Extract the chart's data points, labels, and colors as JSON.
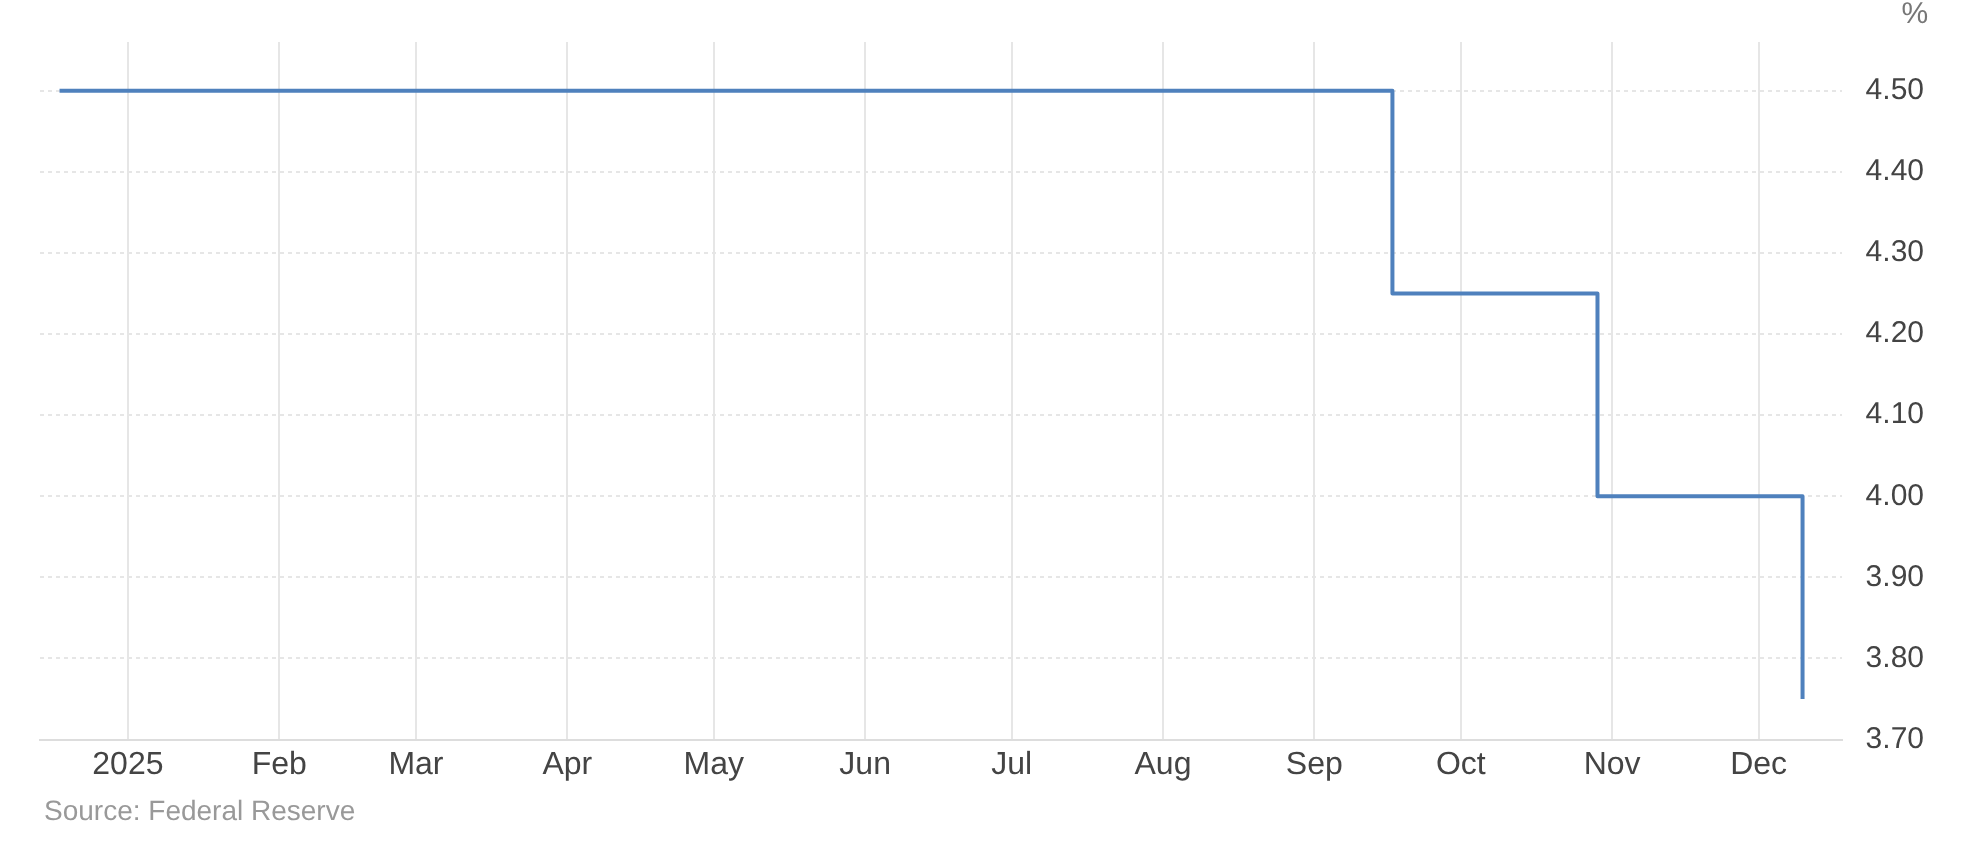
{
  "chart_data": {
    "type": "step",
    "ylabel": "%",
    "annotations": [
      "Source: Federal Reserve"
    ],
    "x": [
      "2024-12-18",
      "2025-09-17",
      "2025-10-29",
      "2025-12-10"
    ],
    "series": [
      {
        "color": "#4f81bd",
        "values": [
          4.5,
          4.25,
          4.0,
          3.75
        ]
      }
    ],
    "xlim": [
      "2024-12-14",
      "2025-12-18"
    ],
    "xticks": [
      {
        "value": "2025-01-01",
        "label": "2025"
      },
      {
        "value": "2025-02-01",
        "label": "Feb"
      },
      {
        "value": "2025-03-01",
        "label": "Mar"
      },
      {
        "value": "2025-04-01",
        "label": "Apr"
      },
      {
        "value": "2025-05-01",
        "label": "May"
      },
      {
        "value": "2025-06-01",
        "label": "Jun"
      },
      {
        "value": "2025-07-01",
        "label": "Jul"
      },
      {
        "value": "2025-08-01",
        "label": "Aug"
      },
      {
        "value": "2025-09-01",
        "label": "Sep"
      },
      {
        "value": "2025-10-01",
        "label": "Oct"
      },
      {
        "value": "2025-11-01",
        "label": "Nov"
      },
      {
        "value": "2025-12-01",
        "label": "Dec"
      }
    ],
    "ylim": [
      3.7,
      4.56
    ],
    "yticks": [
      {
        "value": 3.7,
        "label": "3.70"
      },
      {
        "value": 3.8,
        "label": "3.80"
      },
      {
        "value": 3.9,
        "label": "3.90"
      },
      {
        "value": 4.0,
        "label": "4.00"
      },
      {
        "value": 4.1,
        "label": "4.10"
      },
      {
        "value": 4.2,
        "label": "4.20"
      },
      {
        "value": 4.3,
        "label": "4.30"
      },
      {
        "value": 4.4,
        "label": "4.40"
      },
      {
        "value": 4.5,
        "label": "4.50"
      }
    ],
    "grid": true,
    "legend": false,
    "marker": "none",
    "line_style": "solid"
  }
}
